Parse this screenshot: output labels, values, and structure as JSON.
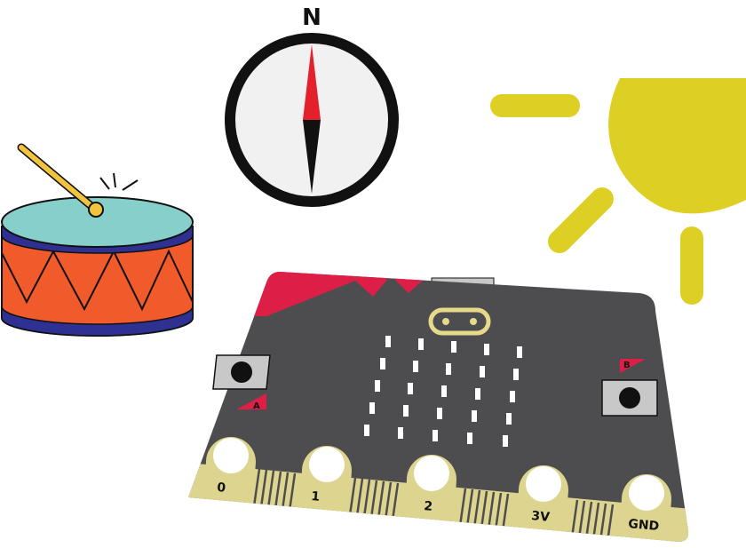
{
  "compass": {
    "heading_label": "N",
    "colors": {
      "ring": "#111111",
      "face": "#f1f1f1",
      "needle_north": "#e3202b",
      "needle_south": "#111111"
    }
  },
  "drum": {
    "colors": {
      "top": "#86cfca",
      "body": "#f15a2b",
      "rim": "#2e3192",
      "stick": "#f2c43d"
    }
  },
  "sun": {
    "colors": {
      "sun": "#ddcf23"
    }
  },
  "board": {
    "button_a_label": "A",
    "button_b_label": "B",
    "pins": [
      "0",
      "1",
      "2",
      "3V",
      "GND"
    ],
    "colors": {
      "board": "#4d4d4f",
      "accent": "#dd1f47",
      "edge": "#ddd58f",
      "button": "#c8c8c8",
      "logo": "#e5da8a"
    }
  }
}
